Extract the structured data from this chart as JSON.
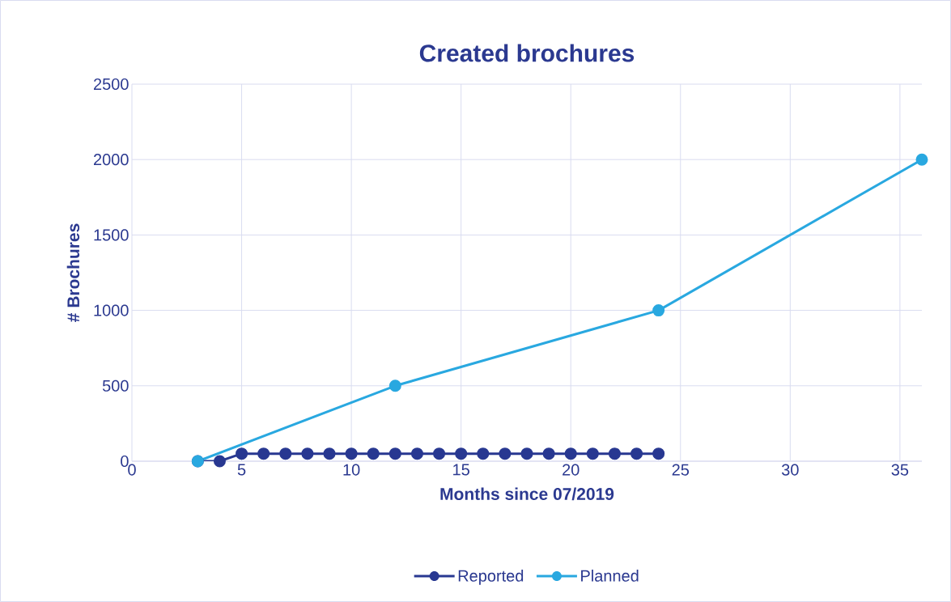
{
  "chart_data": {
    "type": "line",
    "title": "Created brochures",
    "xlabel": "Months since 07/2019",
    "ylabel": "# Brochures",
    "xlim": [
      0,
      36
    ],
    "ylim": [
      0,
      2500
    ],
    "xticks": [
      0,
      5,
      10,
      15,
      20,
      25,
      30,
      35
    ],
    "yticks": [
      0,
      500,
      1000,
      1500,
      2000,
      2500
    ],
    "grid": true,
    "legend": "bottom",
    "marker": "circle",
    "line_style": "solid",
    "series": [
      {
        "name": "Reported",
        "color": "#283891",
        "x": [
          3,
          4,
          5,
          6,
          7,
          8,
          9,
          10,
          11,
          12,
          13,
          14,
          15,
          16,
          17,
          18,
          19,
          20,
          21,
          22,
          23,
          24
        ],
        "values": [
          0,
          0,
          50,
          50,
          50,
          50,
          50,
          50,
          50,
          50,
          50,
          50,
          50,
          50,
          50,
          50,
          50,
          50,
          50,
          50,
          50,
          50
        ]
      },
      {
        "name": "Planned",
        "color": "#29a8e0",
        "x": [
          3,
          12,
          24,
          36
        ],
        "values": [
          0,
          500,
          1000,
          2000
        ]
      }
    ]
  }
}
